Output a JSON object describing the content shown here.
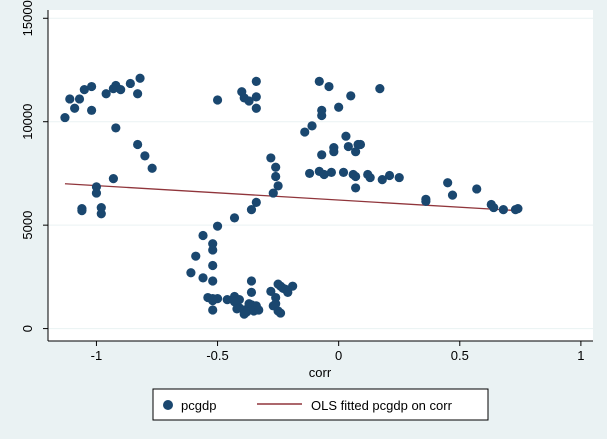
{
  "chart_data": {
    "type": "scatter",
    "xlabel": "corr",
    "ylabel": "",
    "xlim": [
      -1.2,
      1.05
    ],
    "ylim": [
      -600,
      15400
    ],
    "xticks": [
      -1,
      -0.5,
      0,
      0.5,
      1
    ],
    "xtick_labels": [
      "-1",
      "-0.5",
      "0",
      "0.5",
      "1"
    ],
    "yticks": [
      0,
      5000,
      10000,
      15000
    ],
    "ytick_labels": [
      "0",
      "5000",
      "10000",
      "15000"
    ],
    "grid": "horizontal",
    "legend_position": "bottom",
    "series": [
      {
        "name": "pcgdp",
        "kind": "scatter",
        "color": "#1a476f",
        "points": [
          [
            -1.13,
            10200
          ],
          [
            -1.11,
            11100
          ],
          [
            -1.09,
            10650
          ],
          [
            -1.07,
            11100
          ],
          [
            -1.05,
            11550
          ],
          [
            -1.02,
            11700
          ],
          [
            -1.02,
            10550
          ],
          [
            -0.96,
            11350
          ],
          [
            -0.93,
            11600
          ],
          [
            -0.92,
            11750
          ],
          [
            -0.9,
            11550
          ],
          [
            -0.86,
            11850
          ],
          [
            -0.83,
            11350
          ],
          [
            -0.82,
            12100
          ],
          [
            -0.92,
            9700
          ],
          [
            -0.83,
            8900
          ],
          [
            -0.8,
            8350
          ],
          [
            -0.77,
            7750
          ],
          [
            -0.93,
            7250
          ],
          [
            -1.0,
            6850
          ],
          [
            -1.0,
            6550
          ],
          [
            -0.98,
            5850
          ],
          [
            -0.98,
            5550
          ],
          [
            -1.06,
            5800
          ],
          [
            -1.06,
            5700
          ],
          [
            -0.5,
            11050
          ],
          [
            -0.4,
            11450
          ],
          [
            -0.39,
            11150
          ],
          [
            -0.37,
            11000
          ],
          [
            -0.34,
            11950
          ],
          [
            -0.34,
            11200
          ],
          [
            -0.34,
            10650
          ],
          [
            -0.08,
            11950
          ],
          [
            -0.04,
            11700
          ],
          [
            0.05,
            11250
          ],
          [
            0.17,
            11600
          ],
          [
            0.0,
            10700
          ],
          [
            -0.07,
            10300
          ],
          [
            -0.07,
            10550
          ],
          [
            -0.11,
            9800
          ],
          [
            -0.14,
            9500
          ],
          [
            0.03,
            9300
          ],
          [
            0.08,
            8900
          ],
          [
            0.09,
            8900
          ],
          [
            0.04,
            8800
          ],
          [
            -0.02,
            8750
          ],
          [
            -0.07,
            8400
          ],
          [
            0.07,
            8550
          ],
          [
            -0.02,
            8550
          ],
          [
            -0.28,
            8250
          ],
          [
            -0.26,
            7800
          ],
          [
            -0.26,
            7350
          ],
          [
            -0.25,
            6900
          ],
          [
            -0.27,
            6550
          ],
          [
            -0.34,
            6100
          ],
          [
            -0.36,
            5750
          ],
          [
            -0.43,
            5350
          ],
          [
            -0.12,
            7500
          ],
          [
            -0.08,
            7600
          ],
          [
            -0.06,
            7450
          ],
          [
            -0.03,
            7550
          ],
          [
            0.02,
            7550
          ],
          [
            0.06,
            7450
          ],
          [
            0.07,
            7350
          ],
          [
            0.07,
            6800
          ],
          [
            0.12,
            7450
          ],
          [
            0.13,
            7300
          ],
          [
            0.18,
            7200
          ],
          [
            0.21,
            7400
          ],
          [
            0.25,
            7300
          ],
          [
            0.36,
            6250
          ],
          [
            0.36,
            6150
          ],
          [
            0.45,
            7050
          ],
          [
            0.47,
            6450
          ],
          [
            0.57,
            6750
          ],
          [
            0.63,
            6000
          ],
          [
            0.64,
            5850
          ],
          [
            0.68,
            5750
          ],
          [
            0.73,
            5750
          ],
          [
            0.74,
            5800
          ],
          [
            -0.5,
            4950
          ],
          [
            -0.56,
            4500
          ],
          [
            -0.52,
            4100
          ],
          [
            -0.52,
            3800
          ],
          [
            -0.59,
            3500
          ],
          [
            -0.52,
            3050
          ],
          [
            -0.61,
            2700
          ],
          [
            -0.56,
            2450
          ],
          [
            -0.52,
            2300
          ],
          [
            -0.54,
            1500
          ],
          [
            -0.52,
            1450
          ],
          [
            -0.5,
            1450
          ],
          [
            -0.52,
            1350
          ],
          [
            -0.46,
            1400
          ],
          [
            -0.43,
            1550
          ],
          [
            -0.41,
            1400
          ],
          [
            -0.43,
            1300
          ],
          [
            -0.41,
            1000
          ],
          [
            -0.42,
            950
          ],
          [
            -0.39,
            900
          ],
          [
            -0.37,
            1200
          ],
          [
            -0.36,
            1150
          ],
          [
            -0.34,
            1100
          ],
          [
            -0.38,
            800
          ],
          [
            -0.35,
            850
          ],
          [
            -0.33,
            900
          ],
          [
            -0.52,
            900
          ],
          [
            -0.39,
            700
          ],
          [
            -0.36,
            2300
          ],
          [
            -0.36,
            1750
          ],
          [
            -0.28,
            1800
          ],
          [
            -0.26,
            1500
          ],
          [
            -0.26,
            1200
          ],
          [
            -0.27,
            1100
          ],
          [
            -0.24,
            2050
          ],
          [
            -0.25,
            2150
          ],
          [
            -0.23,
            1950
          ],
          [
            -0.22,
            1900
          ],
          [
            -0.19,
            2050
          ],
          [
            -0.21,
            1750
          ],
          [
            -0.25,
            850
          ],
          [
            -0.24,
            750
          ]
        ]
      },
      {
        "name": "OLS fitted pcgdp on corr",
        "kind": "line",
        "color": "#90353b",
        "points": [
          [
            -1.13,
            7000
          ],
          [
            0.74,
            5700
          ]
        ]
      }
    ]
  }
}
